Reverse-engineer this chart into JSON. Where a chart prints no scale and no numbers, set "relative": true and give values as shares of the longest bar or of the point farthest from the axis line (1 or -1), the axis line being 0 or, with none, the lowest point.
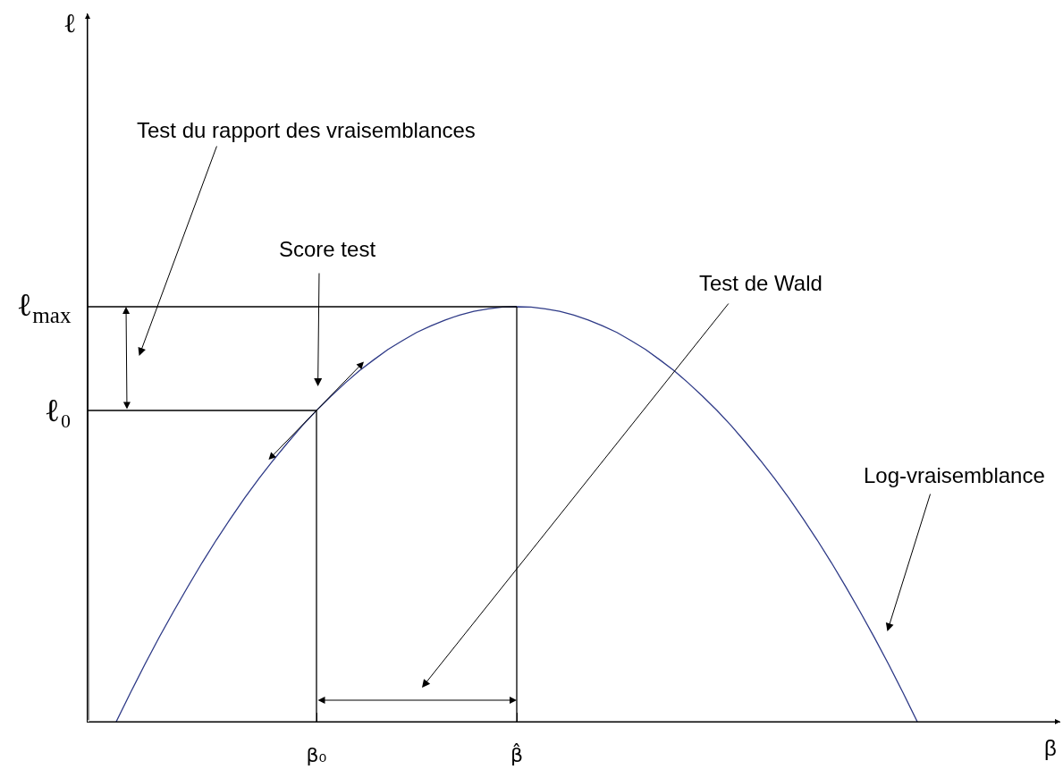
{
  "chart_data": {
    "type": "line",
    "relative": true,
    "xlabel": "β",
    "categories": [
      null,
      null,
      null,
      null,
      null,
      null,
      null,
      null,
      null,
      null,
      null,
      null,
      null,
      null,
      null,
      null,
      "β₀",
      null,
      null,
      null,
      null,
      null,
      null,
      null,
      null,
      null,
      null,
      null,
      null,
      null,
      "β̂",
      null,
      null,
      null,
      null,
      null,
      null,
      null,
      null,
      null,
      null,
      null,
      null,
      null,
      null,
      null,
      null,
      null,
      null,
      null,
      null,
      null,
      null,
      null,
      null,
      null,
      null,
      null,
      null,
      null,
      null,
      null,
      null,
      null,
      null,
      null,
      null,
      null,
      null
    ],
    "color": "#2e3a87",
    "values": [
      null,
      null,
      0,
      0.07,
      0.138,
      0.203,
      0.265,
      0.325,
      0.383,
      0.438,
      0.49,
      0.54,
      0.587,
      0.631,
      0.673,
      0.713,
      0.75,
      0.784,
      0.816,
      0.846,
      0.872,
      0.897,
      0.918,
      0.938,
      0.954,
      0.968,
      0.98,
      0.989,
      0.995,
      0.999,
      1,
      0.999,
      0.995,
      0.989,
      0.98,
      0.968,
      0.954,
      0.938,
      0.918,
      0.897,
      0.872,
      0.846,
      0.816,
      0.784,
      0.75,
      0.713,
      0.673,
      0.631,
      0.587,
      0.54,
      0.49,
      0.438,
      0.383,
      0.325,
      0.265,
      0.203,
      0.138,
      0.07,
      0,
      null,
      null,
      null,
      null,
      null,
      null,
      null,
      null,
      null,
      null
    ],
    "ref_lines": [
      {
        "axis": "y",
        "value": 1,
        "label": "ℓ$_{max}$",
        "color": "#000000"
      },
      {
        "axis": "y",
        "value": 0.75,
        "label": "ℓ₀",
        "color": "#000000"
      },
      {
        "axis": "x",
        "value": "β₀",
        "color": "#000000"
      },
      {
        "axis": "x",
        "value": "β̂",
        "color": "#000000"
      }
    ],
    "annotations": [
      "Test du rapport des vraisemblances",
      "Score test",
      "Test de Wald",
      "Log-vraisemblance",
      "ℓ"
    ]
  }
}
